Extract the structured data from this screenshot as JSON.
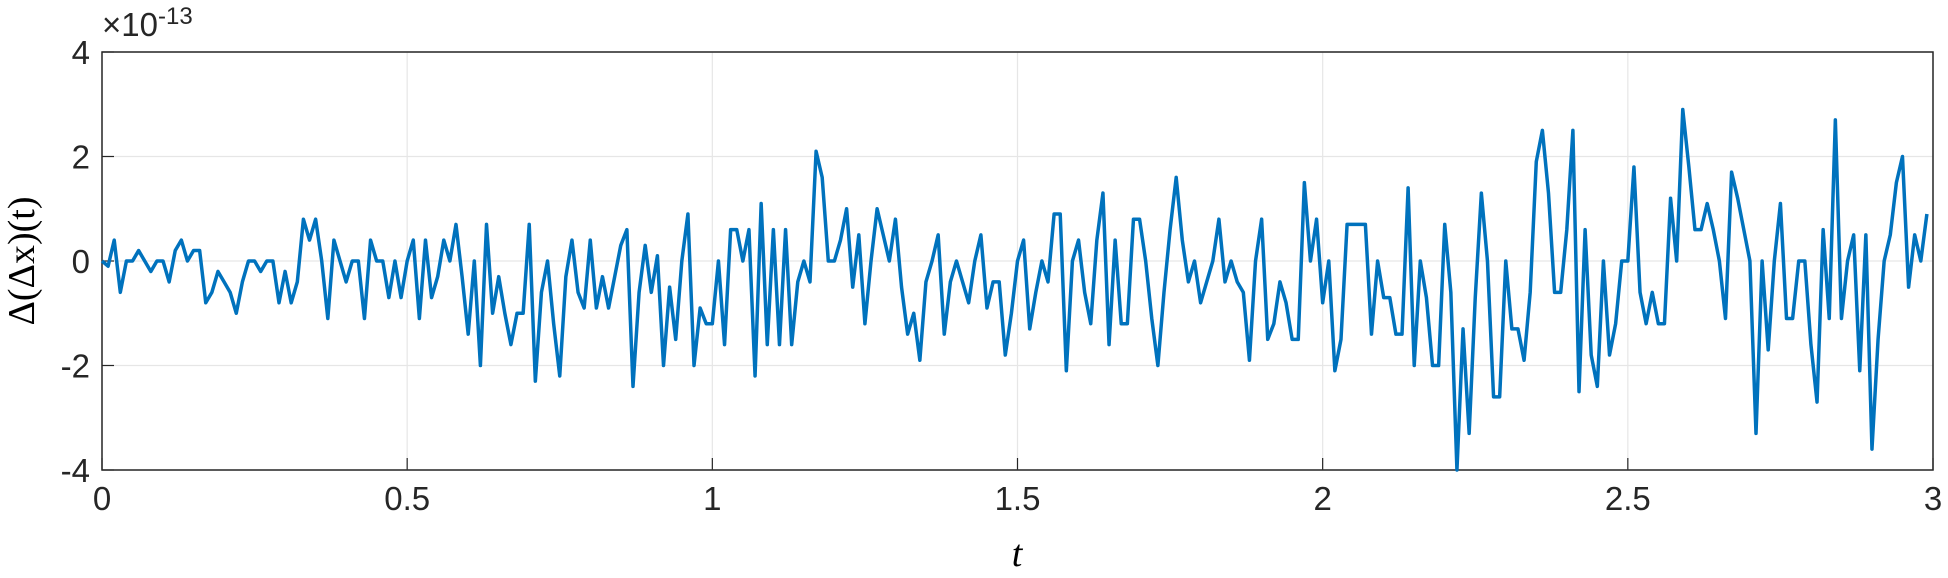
{
  "chart_data": {
    "type": "line",
    "xlabel": "t",
    "ylabel": "Δ(Δx)(t)",
    "ylabel_multiplier": "×10",
    "ylabel_exponent": "-13",
    "xlim": [
      0,
      3
    ],
    "xticks": [
      0,
      0.5,
      1,
      1.5,
      2,
      2.5,
      3
    ],
    "ylim": [
      -4,
      4
    ],
    "yticks": [
      -4,
      -2,
      0,
      2,
      4
    ],
    "grid": true,
    "x": [
      0,
      0.01,
      0.02,
      0.03,
      0.04,
      0.05,
      0.06,
      0.07,
      0.08,
      0.09,
      0.1,
      0.11,
      0.12,
      0.13,
      0.14,
      0.15,
      0.16,
      0.17,
      0.18,
      0.19,
      0.2,
      0.21,
      0.22,
      0.23,
      0.24,
      0.25,
      0.26,
      0.27,
      0.28,
      0.29,
      0.3,
      0.31,
      0.32,
      0.33,
      0.34,
      0.35,
      0.36,
      0.37,
      0.38,
      0.39,
      0.4,
      0.41,
      0.42,
      0.43,
      0.44,
      0.45,
      0.46,
      0.47,
      0.48,
      0.49,
      0.5,
      0.51,
      0.52,
      0.53,
      0.54,
      0.55,
      0.56,
      0.57,
      0.58,
      0.59,
      0.6,
      0.61,
      0.62,
      0.63,
      0.64,
      0.65,
      0.66,
      0.67,
      0.68,
      0.69,
      0.7,
      0.71,
      0.72,
      0.73,
      0.74,
      0.75,
      0.76,
      0.77,
      0.78,
      0.79,
      0.8,
      0.81,
      0.82,
      0.83,
      0.84,
      0.85,
      0.86,
      0.87,
      0.88,
      0.89,
      0.9,
      0.91,
      0.92,
      0.93,
      0.94,
      0.95,
      0.96,
      0.97,
      0.98,
      0.99,
      1,
      1.01,
      1.02,
      1.03,
      1.04,
      1.05,
      1.06,
      1.07,
      1.08,
      1.09,
      1.1,
      1.11,
      1.12,
      1.13,
      1.14,
      1.15,
      1.16,
      1.17,
      1.18,
      1.19,
      1.2,
      1.21,
      1.22,
      1.23,
      1.24,
      1.25,
      1.26,
      1.27,
      1.28,
      1.29,
      1.3,
      1.31,
      1.32,
      1.33,
      1.34,
      1.35,
      1.36,
      1.37,
      1.38,
      1.39,
      1.4,
      1.41,
      1.42,
      1.43,
      1.44,
      1.45,
      1.46,
      1.47,
      1.48,
      1.49,
      1.5,
      1.51,
      1.52,
      1.53,
      1.54,
      1.55,
      1.56,
      1.57,
      1.58,
      1.59,
      1.6,
      1.61,
      1.62,
      1.63,
      1.64,
      1.65,
      1.66,
      1.67,
      1.68,
      1.69,
      1.7,
      1.71,
      1.72,
      1.73,
      1.74,
      1.75,
      1.76,
      1.77,
      1.78,
      1.79,
      1.8,
      1.81,
      1.82,
      1.83,
      1.84,
      1.85,
      1.86,
      1.87,
      1.88,
      1.89,
      1.9,
      1.91,
      1.92,
      1.93,
      1.94,
      1.95,
      1.96,
      1.97,
      1.98,
      1.99,
      2,
      2.01,
      2.02,
      2.03,
      2.04,
      2.05,
      2.06,
      2.07,
      2.08,
      2.09,
      2.1,
      2.11,
      2.12,
      2.13,
      2.14,
      2.15,
      2.16,
      2.17,
      2.18,
      2.19,
      2.2,
      2.21,
      2.22,
      2.23,
      2.24,
      2.25,
      2.26,
      2.27,
      2.28,
      2.29,
      2.3,
      2.31,
      2.32,
      2.33,
      2.34,
      2.35,
      2.36,
      2.37,
      2.38,
      2.39,
      2.4,
      2.41,
      2.42,
      2.43,
      2.44,
      2.45,
      2.46,
      2.47,
      2.48,
      2.49,
      2.5,
      2.51,
      2.52,
      2.53,
      2.54,
      2.55,
      2.56,
      2.57,
      2.58,
      2.59,
      2.6,
      2.61,
      2.62,
      2.63,
      2.64,
      2.65,
      2.66,
      2.67,
      2.68,
      2.69,
      2.7,
      2.71,
      2.72,
      2.73,
      2.74,
      2.75,
      2.76,
      2.77,
      2.78,
      2.79,
      2.8,
      2.81,
      2.82,
      2.83,
      2.84,
      2.85,
      2.86,
      2.87,
      2.88,
      2.89,
      2.9,
      2.91,
      2.92,
      2.93,
      2.94,
      2.95,
      2.96,
      2.97,
      2.98,
      2.99
    ],
    "series": [
      {
        "color": "#0072bd",
        "values": [
          0,
          -0.1,
          0.4,
          -0.6,
          0,
          0,
          0.2,
          0,
          -0.2,
          0,
          0,
          -0.4,
          0.2,
          0.4,
          0,
          0.2,
          0.2,
          -0.8,
          -0.6,
          -0.2,
          -0.4,
          -0.6,
          -1,
          -0.4,
          0,
          0,
          -0.2,
          0,
          0,
          -0.8,
          -0.2,
          -0.8,
          -0.4,
          0.8,
          0.4,
          0.8,
          0,
          -1.1,
          0.4,
          0,
          -0.4,
          0,
          0,
          -1.1,
          0.4,
          0,
          0,
          -0.7,
          0,
          -0.7,
          0,
          0.4,
          -1.1,
          0.4,
          -0.7,
          -0.3,
          0.4,
          0,
          0.7,
          -0.3,
          -1.4,
          0,
          -2,
          0.7,
          -1,
          -0.3,
          -1,
          -1.6,
          -1,
          -1,
          0.7,
          -2.3,
          -0.6,
          0,
          -1.2,
          -2.2,
          -0.3,
          0.4,
          -0.6,
          -0.9,
          0.4,
          -0.9,
          -0.3,
          -0.9,
          -0.3,
          0.3,
          0.6,
          -2.4,
          -0.6,
          0.3,
          -0.6,
          0.1,
          -2,
          -0.5,
          -1.5,
          0,
          0.9,
          -2,
          -0.9,
          -1.2,
          -1.2,
          0,
          -1.6,
          0.6,
          0.6,
          0,
          0.6,
          -2.2,
          1.1,
          -1.6,
          0.6,
          -1.6,
          0.6,
          -1.6,
          -0.4,
          0,
          -0.4,
          2.1,
          1.6,
          0,
          0,
          0.4,
          1,
          -0.5,
          0.5,
          -1.2,
          0,
          1,
          0.5,
          0,
          0.8,
          -0.5,
          -1.4,
          -1,
          -1.9,
          -0.4,
          0,
          0.5,
          -1.4,
          -0.4,
          0,
          -0.4,
          -0.8,
          0,
          0.5,
          -0.9,
          -0.4,
          -0.4,
          -1.8,
          -1,
          0,
          0.4,
          -1.3,
          -0.6,
          0,
          -0.4,
          0.9,
          0.9,
          -2.1,
          0,
          0.4,
          -0.6,
          -1.2,
          0.4,
          1.3,
          -1.6,
          0.4,
          -1.2,
          -1.2,
          0.8,
          0.8,
          0,
          -1.1,
          -2,
          -0.6,
          0.6,
          1.6,
          0.4,
          -0.4,
          0,
          -0.8,
          -0.4,
          0,
          0.8,
          -0.4,
          0,
          -0.4,
          -0.6,
          -1.9,
          0,
          0.8,
          -1.5,
          -1.2,
          -0.4,
          -0.8,
          -1.5,
          -1.5,
          1.5,
          0,
          0.8,
          -0.8,
          0,
          -2.1,
          -1.5,
          0.7,
          0.7,
          0.7,
          0.7,
          -1.4,
          0,
          -0.7,
          -0.7,
          -1.4,
          -1.4,
          1.4,
          -2,
          0,
          -0.7,
          -2,
          -2,
          0.7,
          -0.6,
          -4,
          -1.3,
          -3.3,
          -0.7,
          1.3,
          0,
          -2.6,
          -2.6,
          0,
          -1.3,
          -1.3,
          -1.9,
          -0.6,
          1.9,
          2.5,
          1.3,
          -0.6,
          -0.6,
          0.6,
          2.5,
          -2.5,
          0.6,
          -1.8,
          -2.4,
          0,
          -1.8,
          -1.2,
          0,
          0,
          1.8,
          -0.6,
          -1.2,
          -0.6,
          -1.2,
          -1.2,
          1.2,
          0,
          2.9,
          1.8,
          0.6,
          0.6,
          1.1,
          0.6,
          0,
          -1.1,
          1.7,
          1.2,
          0.6,
          0,
          -3.3,
          0,
          -1.7,
          0,
          1.1,
          -1.1,
          -1.1,
          0,
          0,
          -1.6,
          -2.7,
          0.6,
          -1.1,
          2.7,
          -1.1,
          0,
          0.5,
          -2.1,
          0.5,
          -3.6,
          -1.5,
          0,
          0.5,
          1.5,
          2,
          -0.5,
          0.5,
          0,
          0.9
        ]
      }
    ]
  }
}
